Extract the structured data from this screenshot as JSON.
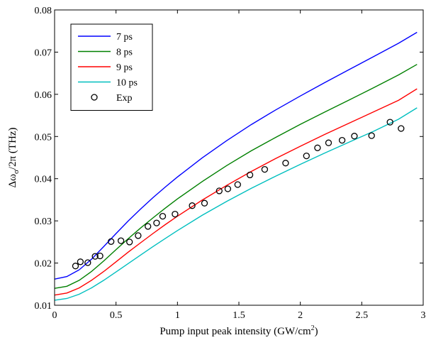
{
  "chart_data": {
    "type": "line",
    "title": "",
    "xlabel": "Pump input peak intensity (GW/cm",
    "xlabel_sup": "2",
    "xlabel_end": ")",
    "ylabel_parts": [
      "Δω",
      "σ",
      "/2π (THz)"
    ],
    "xlim": [
      0,
      3
    ],
    "ylim": [
      0.01,
      0.08
    ],
    "xticks": [
      0,
      0.5,
      1,
      1.5,
      2,
      2.5,
      3
    ],
    "xtick_labels": [
      "0",
      "0.5",
      "1",
      "1.5",
      "2",
      "2.5",
      "3"
    ],
    "yticks": [
      0.01,
      0.02,
      0.03,
      0.04,
      0.05,
      0.06,
      0.07,
      0.08
    ],
    "ytick_labels": [
      "0.01",
      "0.02",
      "0.03",
      "0.04",
      "0.05",
      "0.06",
      "0.07",
      "0.08"
    ],
    "grid": false,
    "legend_position": "top-left",
    "x": [
      0,
      0.1,
      0.2,
      0.3,
      0.4,
      0.5,
      0.6,
      0.7,
      0.8,
      0.9,
      1.0,
      1.2,
      1.4,
      1.6,
      1.8,
      2.0,
      2.2,
      2.4,
      2.6,
      2.8,
      2.95
    ],
    "series": [
      {
        "name": "7 ps",
        "color": "#0000ff",
        "values": [
          0.0162,
          0.0168,
          0.0184,
          0.0209,
          0.0239,
          0.027,
          0.03,
          0.0328,
          0.0355,
          0.038,
          0.0404,
          0.0449,
          0.049,
          0.0528,
          0.0563,
          0.0596,
          0.0628,
          0.0659,
          0.069,
          0.0721,
          0.0747
        ]
      },
      {
        "name": "8 ps",
        "color": "#008000",
        "values": [
          0.014,
          0.0145,
          0.0159,
          0.018,
          0.0205,
          0.0232,
          0.0258,
          0.0283,
          0.0307,
          0.033,
          0.0352,
          0.0393,
          0.0431,
          0.0466,
          0.0498,
          0.0529,
          0.0558,
          0.0587,
          0.0616,
          0.0646,
          0.0671
        ]
      },
      {
        "name": "9 ps",
        "color": "#ff0000",
        "values": [
          0.0124,
          0.0129,
          0.0141,
          0.0159,
          0.018,
          0.0203,
          0.0226,
          0.0248,
          0.027,
          0.0291,
          0.0311,
          0.0349,
          0.0384,
          0.0417,
          0.0448,
          0.0477,
          0.0505,
          0.0532,
          0.0559,
          0.0586,
          0.0613
        ]
      },
      {
        "name": "10 ps",
        "color": "#00bfbf",
        "values": [
          0.0112,
          0.0116,
          0.0126,
          0.0141,
          0.0159,
          0.0179,
          0.0199,
          0.0219,
          0.0239,
          0.0258,
          0.0277,
          0.0313,
          0.0346,
          0.0377,
          0.0406,
          0.0434,
          0.0461,
          0.0487,
          0.0513,
          0.0541,
          0.0568
        ]
      }
    ],
    "scatter": {
      "name": "Exp",
      "points": [
        [
          0.17,
          0.0193
        ],
        [
          0.21,
          0.0203
        ],
        [
          0.27,
          0.0201
        ],
        [
          0.33,
          0.0216
        ],
        [
          0.37,
          0.0217
        ],
        [
          0.46,
          0.0251
        ],
        [
          0.54,
          0.0253
        ],
        [
          0.61,
          0.025
        ],
        [
          0.68,
          0.0265
        ],
        [
          0.76,
          0.0287
        ],
        [
          0.83,
          0.0295
        ],
        [
          0.88,
          0.0311
        ],
        [
          0.98,
          0.0316
        ],
        [
          1.12,
          0.0336
        ],
        [
          1.22,
          0.0342
        ],
        [
          1.34,
          0.0371
        ],
        [
          1.41,
          0.0376
        ],
        [
          1.49,
          0.0386
        ],
        [
          1.59,
          0.0409
        ],
        [
          1.71,
          0.0422
        ],
        [
          1.88,
          0.0437
        ],
        [
          2.05,
          0.0454
        ],
        [
          2.14,
          0.0473
        ],
        [
          2.23,
          0.0485
        ],
        [
          2.34,
          0.0491
        ],
        [
          2.44,
          0.0501
        ],
        [
          2.58,
          0.0502
        ],
        [
          2.73,
          0.0534
        ],
        [
          2.82,
          0.0519
        ]
      ]
    }
  }
}
